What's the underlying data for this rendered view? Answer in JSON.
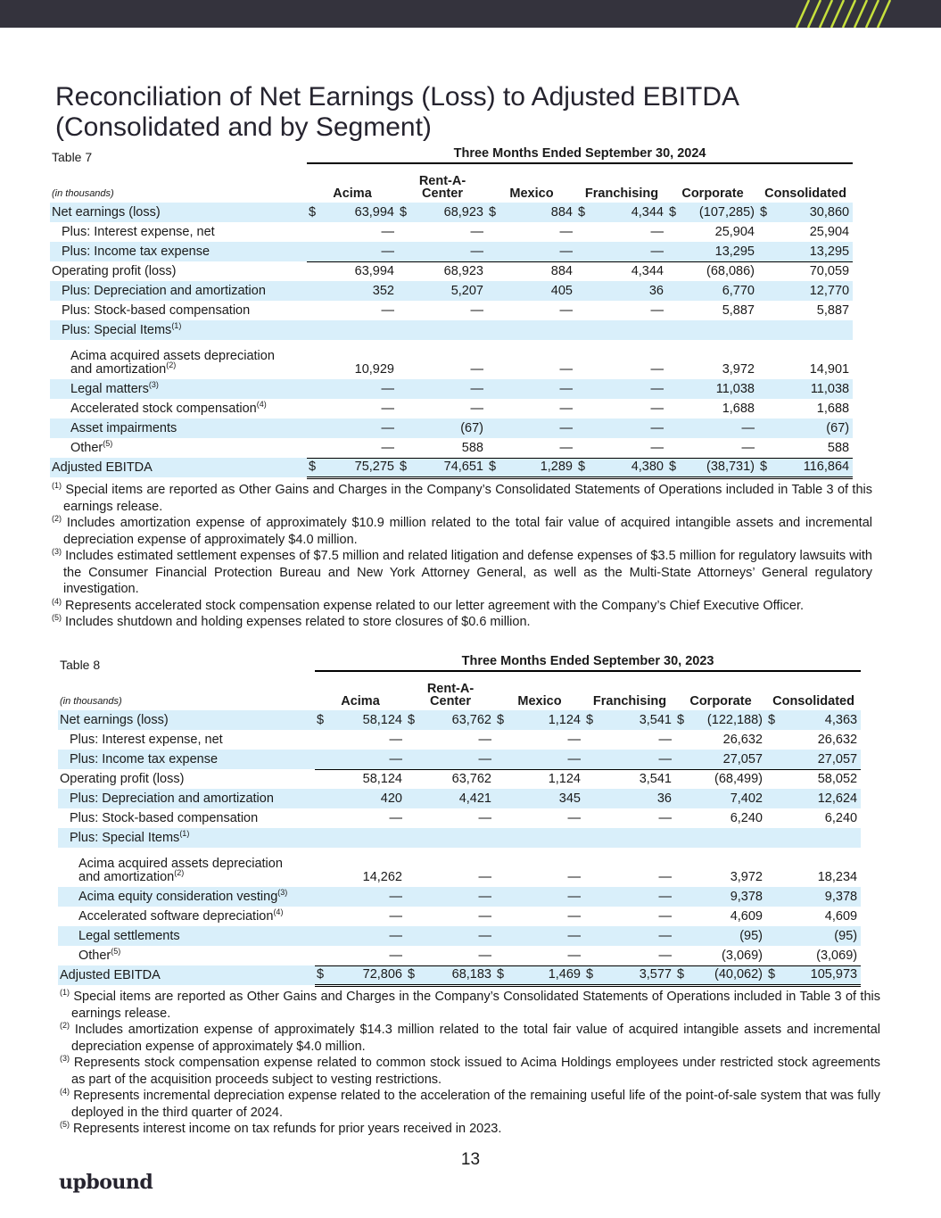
{
  "brand": {
    "logo_text": "upbound",
    "accent_color": "#c6e03c",
    "bar_color": "#34333d",
    "band_color": "#d9effa"
  },
  "page_title": [
    "Reconciliation of Net Earnings (Loss) to Adjusted EBITDA",
    "(Consolidated and by Segment)"
  ],
  "page_number": "13",
  "columns": [
    "Acima",
    "Rent-A-Center",
    "Mexico",
    "Franchising",
    "Corporate",
    "Consolidated"
  ],
  "table7": {
    "label": "Table 7",
    "period": "Three Months Ended September 30, 2024",
    "units": "(in thousands)",
    "rows": [
      {
        "label": "Net earnings (loss)",
        "vals": [
          "63,994",
          "68,923",
          "884",
          "4,344",
          "(107,285)",
          "30,860"
        ]
      },
      {
        "label": "Plus: Interest expense, net",
        "vals": [
          "—",
          "—",
          "—",
          "—",
          "25,904",
          "25,904"
        ]
      },
      {
        "label": "Plus: Income tax expense",
        "vals": [
          "—",
          "—",
          "—",
          "—",
          "13,295",
          "13,295"
        ]
      },
      {
        "label": "Operating profit (loss)",
        "vals": [
          "63,994",
          "68,923",
          "884",
          "4,344",
          "(68,086)",
          "70,059"
        ]
      },
      {
        "label": "Plus: Depreciation and amortization",
        "vals": [
          "352",
          "5,207",
          "405",
          "36",
          "6,770",
          "12,770"
        ]
      },
      {
        "label": "Plus: Stock-based compensation",
        "vals": [
          "—",
          "—",
          "—",
          "—",
          "5,887",
          "5,887"
        ]
      },
      {
        "label": "Plus: Special Items",
        "sup": "(1)"
      },
      {
        "label": "Acima acquired assets depreciation",
        "label2": "and amortization",
        "sup": "(2)",
        "vals": [
          "10,929",
          "—",
          "—",
          "—",
          "3,972",
          "14,901"
        ]
      },
      {
        "label": "Legal matters",
        "sup": "(3)",
        "vals": [
          "—",
          "—",
          "—",
          "—",
          "11,038",
          "11,038"
        ]
      },
      {
        "label": "Accelerated stock compensation",
        "sup": "(4)",
        "vals": [
          "—",
          "—",
          "—",
          "—",
          "1,688",
          "1,688"
        ]
      },
      {
        "label": "Asset impairments",
        "vals": [
          "—",
          "(67)",
          "—",
          "—",
          "—",
          "(67)"
        ]
      },
      {
        "label": "Other",
        "sup": "(5)",
        "vals": [
          "—",
          "588",
          "—",
          "—",
          "—",
          "588"
        ]
      },
      {
        "label": "Adjusted EBITDA",
        "vals": [
          "75,275",
          "74,651",
          "1,289",
          "4,380",
          "(38,731)",
          "116,864"
        ]
      }
    ],
    "footnotes": [
      {
        "mark": "(1)",
        "text": "Special items are reported as Other Gains and Charges in the Company’s Consolidated Statements of Operations included in Table 3 of this earnings release."
      },
      {
        "mark": "(2)",
        "text": "Includes amortization expense of approximately $10.9 million related to the total fair value of acquired intangible assets and incremental depreciation expense of approximately $4.0 million."
      },
      {
        "mark": "(3)",
        "text": "Includes estimated settlement expenses of $7.5 million and related litigation and defense expenses of $3.5 million for regulatory lawsuits with the Consumer Financial Protection Bureau and New York Attorney General, as well as the Multi-State Attorneys’ General regulatory investigation."
      },
      {
        "mark": "(4)",
        "text": "Represents accelerated stock compensation expense related to our letter agreement with the Company’s Chief Executive Officer."
      },
      {
        "mark": "(5)",
        "text": "Includes shutdown and holding expenses related to store closures of $0.6 million."
      }
    ]
  },
  "table8": {
    "label": "Table 8",
    "period": "Three Months Ended September 30, 2023",
    "units": "(in thousands)",
    "rows": [
      {
        "label": "Net earnings (loss)",
        "vals": [
          "58,124",
          "63,762",
          "1,124",
          "3,541",
          "(122,188)",
          "4,363"
        ]
      },
      {
        "label": "Plus: Interest expense, net",
        "vals": [
          "—",
          "—",
          "—",
          "—",
          "26,632",
          "26,632"
        ]
      },
      {
        "label": "Plus: Income tax expense",
        "vals": [
          "—",
          "—",
          "—",
          "—",
          "27,057",
          "27,057"
        ]
      },
      {
        "label": "Operating profit (loss)",
        "vals": [
          "58,124",
          "63,762",
          "1,124",
          "3,541",
          "(68,499)",
          "58,052"
        ]
      },
      {
        "label": "Plus: Depreciation and amortization",
        "vals": [
          "420",
          "4,421",
          "345",
          "36",
          "7,402",
          "12,624"
        ]
      },
      {
        "label": "Plus: Stock-based compensation",
        "vals": [
          "—",
          "—",
          "—",
          "—",
          "6,240",
          "6,240"
        ]
      },
      {
        "label": "Plus: Special Items",
        "sup": "(1)"
      },
      {
        "label": "Acima acquired assets depreciation",
        "label2": "and amortization",
        "sup": "(2)",
        "vals": [
          "14,262",
          "—",
          "—",
          "—",
          "3,972",
          "18,234"
        ]
      },
      {
        "label": "Acima equity consideration vesting",
        "sup": "(3)",
        "vals": [
          "—",
          "—",
          "—",
          "—",
          "9,378",
          "9,378"
        ]
      },
      {
        "label": "Accelerated software depreciation",
        "sup": "(4)",
        "vals": [
          "—",
          "—",
          "—",
          "—",
          "4,609",
          "4,609"
        ]
      },
      {
        "label": "Legal settlements",
        "vals": [
          "—",
          "—",
          "—",
          "—",
          "(95)",
          "(95)"
        ]
      },
      {
        "label": "Other",
        "sup": "(5)",
        "vals": [
          "—",
          "—",
          "—",
          "—",
          "(3,069)",
          "(3,069)"
        ]
      },
      {
        "label": "Adjusted EBITDA",
        "vals": [
          "72,806",
          "68,183",
          "1,469",
          "3,577",
          "(40,062)",
          "105,973"
        ]
      }
    ],
    "footnotes": [
      {
        "mark": "(1)",
        "text": "Special items are reported as Other Gains and Charges in the Company’s Consolidated Statements of Operations included in Table 3 of this earnings release."
      },
      {
        "mark": "(2)",
        "text": "Includes amortization expense of approximately $14.3 million related to the total fair value of acquired intangible assets and incremental depreciation expense of approximately $4.0 million."
      },
      {
        "mark": "(3)",
        "text": "Represents stock compensation expense related to common stock issued to Acima Holdings employees under restricted stock agreements as part of the acquisition proceeds subject to vesting restrictions."
      },
      {
        "mark": "(4)",
        "text": "Represents incremental depreciation expense related to the acceleration of the remaining useful life of the point-of-sale system that was fully deployed in the third quarter of 2024."
      },
      {
        "mark": "(5)",
        "text": "Represents interest income on tax refunds for prior years received in 2023."
      }
    ]
  },
  "currency_symbol": "$"
}
